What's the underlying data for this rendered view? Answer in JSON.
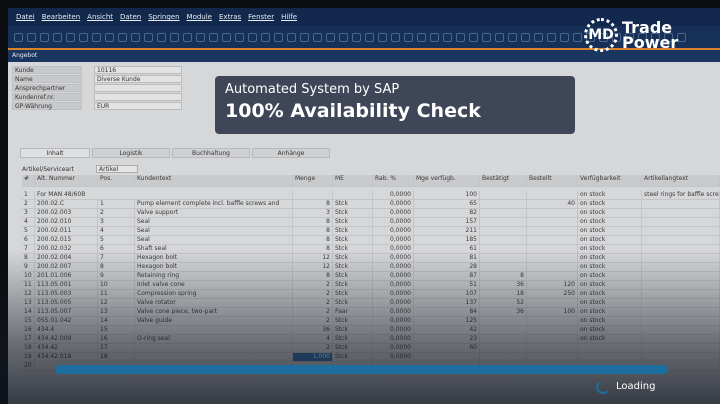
{
  "menu": [
    "Datei",
    "Bearbeiten",
    "Ansicht",
    "Daten",
    "Springen",
    "Module",
    "Extras",
    "Fenster",
    "Hilfe"
  ],
  "window_title": "Angebot",
  "form": [
    {
      "label": "Kunde",
      "value": "10116"
    },
    {
      "label": "Name",
      "value": "Diverse Kunde"
    },
    {
      "label": "Ansprechpartner",
      "value": ""
    },
    {
      "label": "Kundenref.nr.",
      "value": ""
    },
    {
      "label": "GP-Währung",
      "value": "EUR"
    }
  ],
  "tabs": [
    "Inhalt",
    "Logistik",
    "Buchhaltung",
    "Anhänge"
  ],
  "artikel_label": "Artikel/Serviceart",
  "artikel_value": "Artikel",
  "columns": [
    "#",
    "Alt. Nummer",
    "Pos.",
    "Kundentext",
    "Menge",
    "ME",
    "Rab. %",
    "Mge verfügb.",
    "Bestätigt",
    "Bestellt",
    "Verfügbarkeit",
    "Artikellangtext"
  ],
  "rows": [
    [
      "1",
      "For MAN 48/60B",
      "",
      "",
      "",
      "",
      "0,0000",
      "100",
      "",
      "",
      "on stock",
      "steel rings for baffle screws"
    ],
    [
      "2",
      "200.02.C",
      "1",
      "Pump element complete incl. baffle screws and",
      "8",
      "Stck",
      "0,0000",
      "65",
      "",
      "40",
      "on stock",
      ""
    ],
    [
      "3",
      "200.02.003",
      "2",
      "Valve support",
      "3",
      "Stck",
      "0,0000",
      "82",
      "",
      "",
      "on stock",
      ""
    ],
    [
      "4",
      "200.02.010",
      "3",
      "Seal",
      "8",
      "Stck",
      "0,0000",
      "157",
      "",
      "",
      "on stock",
      ""
    ],
    [
      "5",
      "200.02.011",
      "4",
      "Seal",
      "8",
      "Stck",
      "0,0000",
      "211",
      "",
      "",
      "on stock",
      ""
    ],
    [
      "6",
      "200.02.015",
      "5",
      "Seal",
      "8",
      "Stck",
      "0,0000",
      "185",
      "",
      "",
      "on stock",
      ""
    ],
    [
      "7",
      "200.02.032",
      "6",
      "Shaft seal",
      "8",
      "Stck",
      "0,0000",
      "61",
      "",
      "",
      "on stock",
      ""
    ],
    [
      "8",
      "200.02.004",
      "7",
      "Hexagon bolt",
      "12",
      "Stck",
      "0,0000",
      "81",
      "",
      "",
      "on stock",
      ""
    ],
    [
      "9",
      "200.02.007",
      "8",
      "Hexagon bolt",
      "12",
      "Stck",
      "0,0000",
      "28",
      "",
      "",
      "on stock",
      ""
    ],
    [
      "10",
      "201.01.006",
      "9",
      "Retaining ring",
      "8",
      "Stck",
      "0,0000",
      "87",
      "8",
      "",
      "on stock",
      ""
    ],
    [
      "11",
      "113.05.001",
      "10",
      "Inlet valve cone",
      "2",
      "Stck",
      "0,0000",
      "51",
      "36",
      "120",
      "on stock",
      ""
    ],
    [
      "12",
      "113.05.003",
      "11",
      "Compression spring",
      "2",
      "Stck",
      "0,0000",
      "107",
      "18",
      "250",
      "on stock",
      ""
    ],
    [
      "13",
      "113.05.005",
      "12",
      "Valve rotator",
      "2",
      "Stck",
      "0,0000",
      "137",
      "52",
      "",
      "on stock",
      ""
    ],
    [
      "14",
      "113.05.007",
      "13",
      "Valve cone piece, two-part",
      "2",
      "Paar",
      "0,0000",
      "84",
      "36",
      "100",
      "on stock",
      ""
    ],
    [
      "15",
      "055.01.042",
      "14",
      "Valve guide",
      "2",
      "Stck",
      "0,0000",
      "125",
      "",
      "",
      "on stock",
      ""
    ],
    [
      "16",
      "434.4",
      "15",
      "",
      "36",
      "Stck",
      "0,0000",
      "42",
      "",
      "",
      "on stock",
      ""
    ],
    [
      "17",
      "434.42.009",
      "16",
      "O-ring seal",
      "4",
      "Stck",
      "0,0000",
      "23",
      "",
      "",
      "on stock",
      ""
    ],
    [
      "18",
      "434.42",
      "17",
      "",
      "2",
      "Stck",
      "0,0000",
      "60",
      "",
      "",
      "",
      ""
    ],
    [
      "19",
      "434.42.018",
      "18",
      "",
      "1,000",
      "Stck",
      "0,0000",
      "",
      "",
      "",
      "",
      ""
    ],
    [
      "20",
      "",
      "",
      "",
      "",
      "",
      "",
      "",
      "",
      "",
      "",
      ""
    ]
  ],
  "overlay": {
    "subtitle": "Automated System by SAP",
    "headline": "100% Availability Check",
    "loading": "Loading",
    "progress_percent": 100
  },
  "logo": {
    "line1": "Trade",
    "line2": "Power",
    "mark": "MD"
  },
  "colors": {
    "menubar": "#12284d",
    "accent_orange": "#d9822b",
    "progress": "#1b6e9e"
  }
}
